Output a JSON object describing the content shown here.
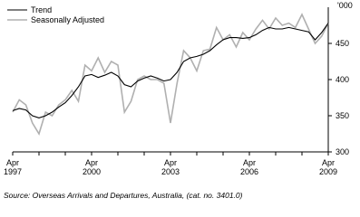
{
  "chart_data": {
    "type": "line",
    "y_unit_label": "'000",
    "source": "Source: Overseas Arrivals and Departures, Australia, (cat. no. 3401.0)",
    "x": [
      "Apr 1997",
      "Jul 1997",
      "Oct 1997",
      "Jan 1998",
      "Apr 1998",
      "Jul 1998",
      "Oct 1998",
      "Jan 1999",
      "Apr 1999",
      "Jul 1999",
      "Oct 1999",
      "Jan 2000",
      "Apr 2000",
      "Jul 2000",
      "Oct 2000",
      "Jan 2001",
      "Apr 2001",
      "Jul 2001",
      "Oct 2001",
      "Jan 2002",
      "Apr 2002",
      "Jul 2002",
      "Oct 2002",
      "Jan 2003",
      "Apr 2003",
      "Jul 2003",
      "Oct 2003",
      "Jan 2004",
      "Apr 2004",
      "Jul 2004",
      "Oct 2004",
      "Jan 2005",
      "Apr 2005",
      "Jul 2005",
      "Oct 2005",
      "Jan 2006",
      "Apr 2006",
      "Jul 2006",
      "Oct 2006",
      "Jan 2007",
      "Apr 2007",
      "Jul 2007",
      "Oct 2007",
      "Jan 2008",
      "Apr 2008",
      "Jul 2008",
      "Oct 2008",
      "Jan 2009",
      "Apr 2009"
    ],
    "series": [
      {
        "name": "Trend",
        "color": "#000000",
        "values": [
          357,
          360,
          358,
          350,
          347,
          350,
          355,
          362,
          368,
          378,
          390,
          405,
          407,
          403,
          406,
          410,
          405,
          393,
          390,
          398,
          402,
          405,
          402,
          398,
          400,
          410,
          425,
          430,
          432,
          435,
          440,
          448,
          455,
          458,
          458,
          457,
          458,
          462,
          468,
          472,
          470,
          470,
          472,
          470,
          468,
          466,
          455,
          465,
          478
        ]
      },
      {
        "name": "Seasonally Adjusted",
        "color": "#b0b0b0",
        "values": [
          355,
          372,
          365,
          340,
          325,
          355,
          350,
          365,
          372,
          385,
          370,
          420,
          412,
          430,
          410,
          425,
          420,
          355,
          370,
          400,
          405,
          400,
          400,
          395,
          340,
          395,
          440,
          430,
          412,
          440,
          442,
          472,
          455,
          462,
          445,
          465,
          455,
          470,
          482,
          470,
          485,
          475,
          478,
          472,
          490,
          470,
          450,
          460,
          478
        ]
      }
    ],
    "ylim": [
      300,
      500
    ],
    "yticks": [
      300,
      350,
      400,
      450
    ],
    "legend": "top-left"
  }
}
